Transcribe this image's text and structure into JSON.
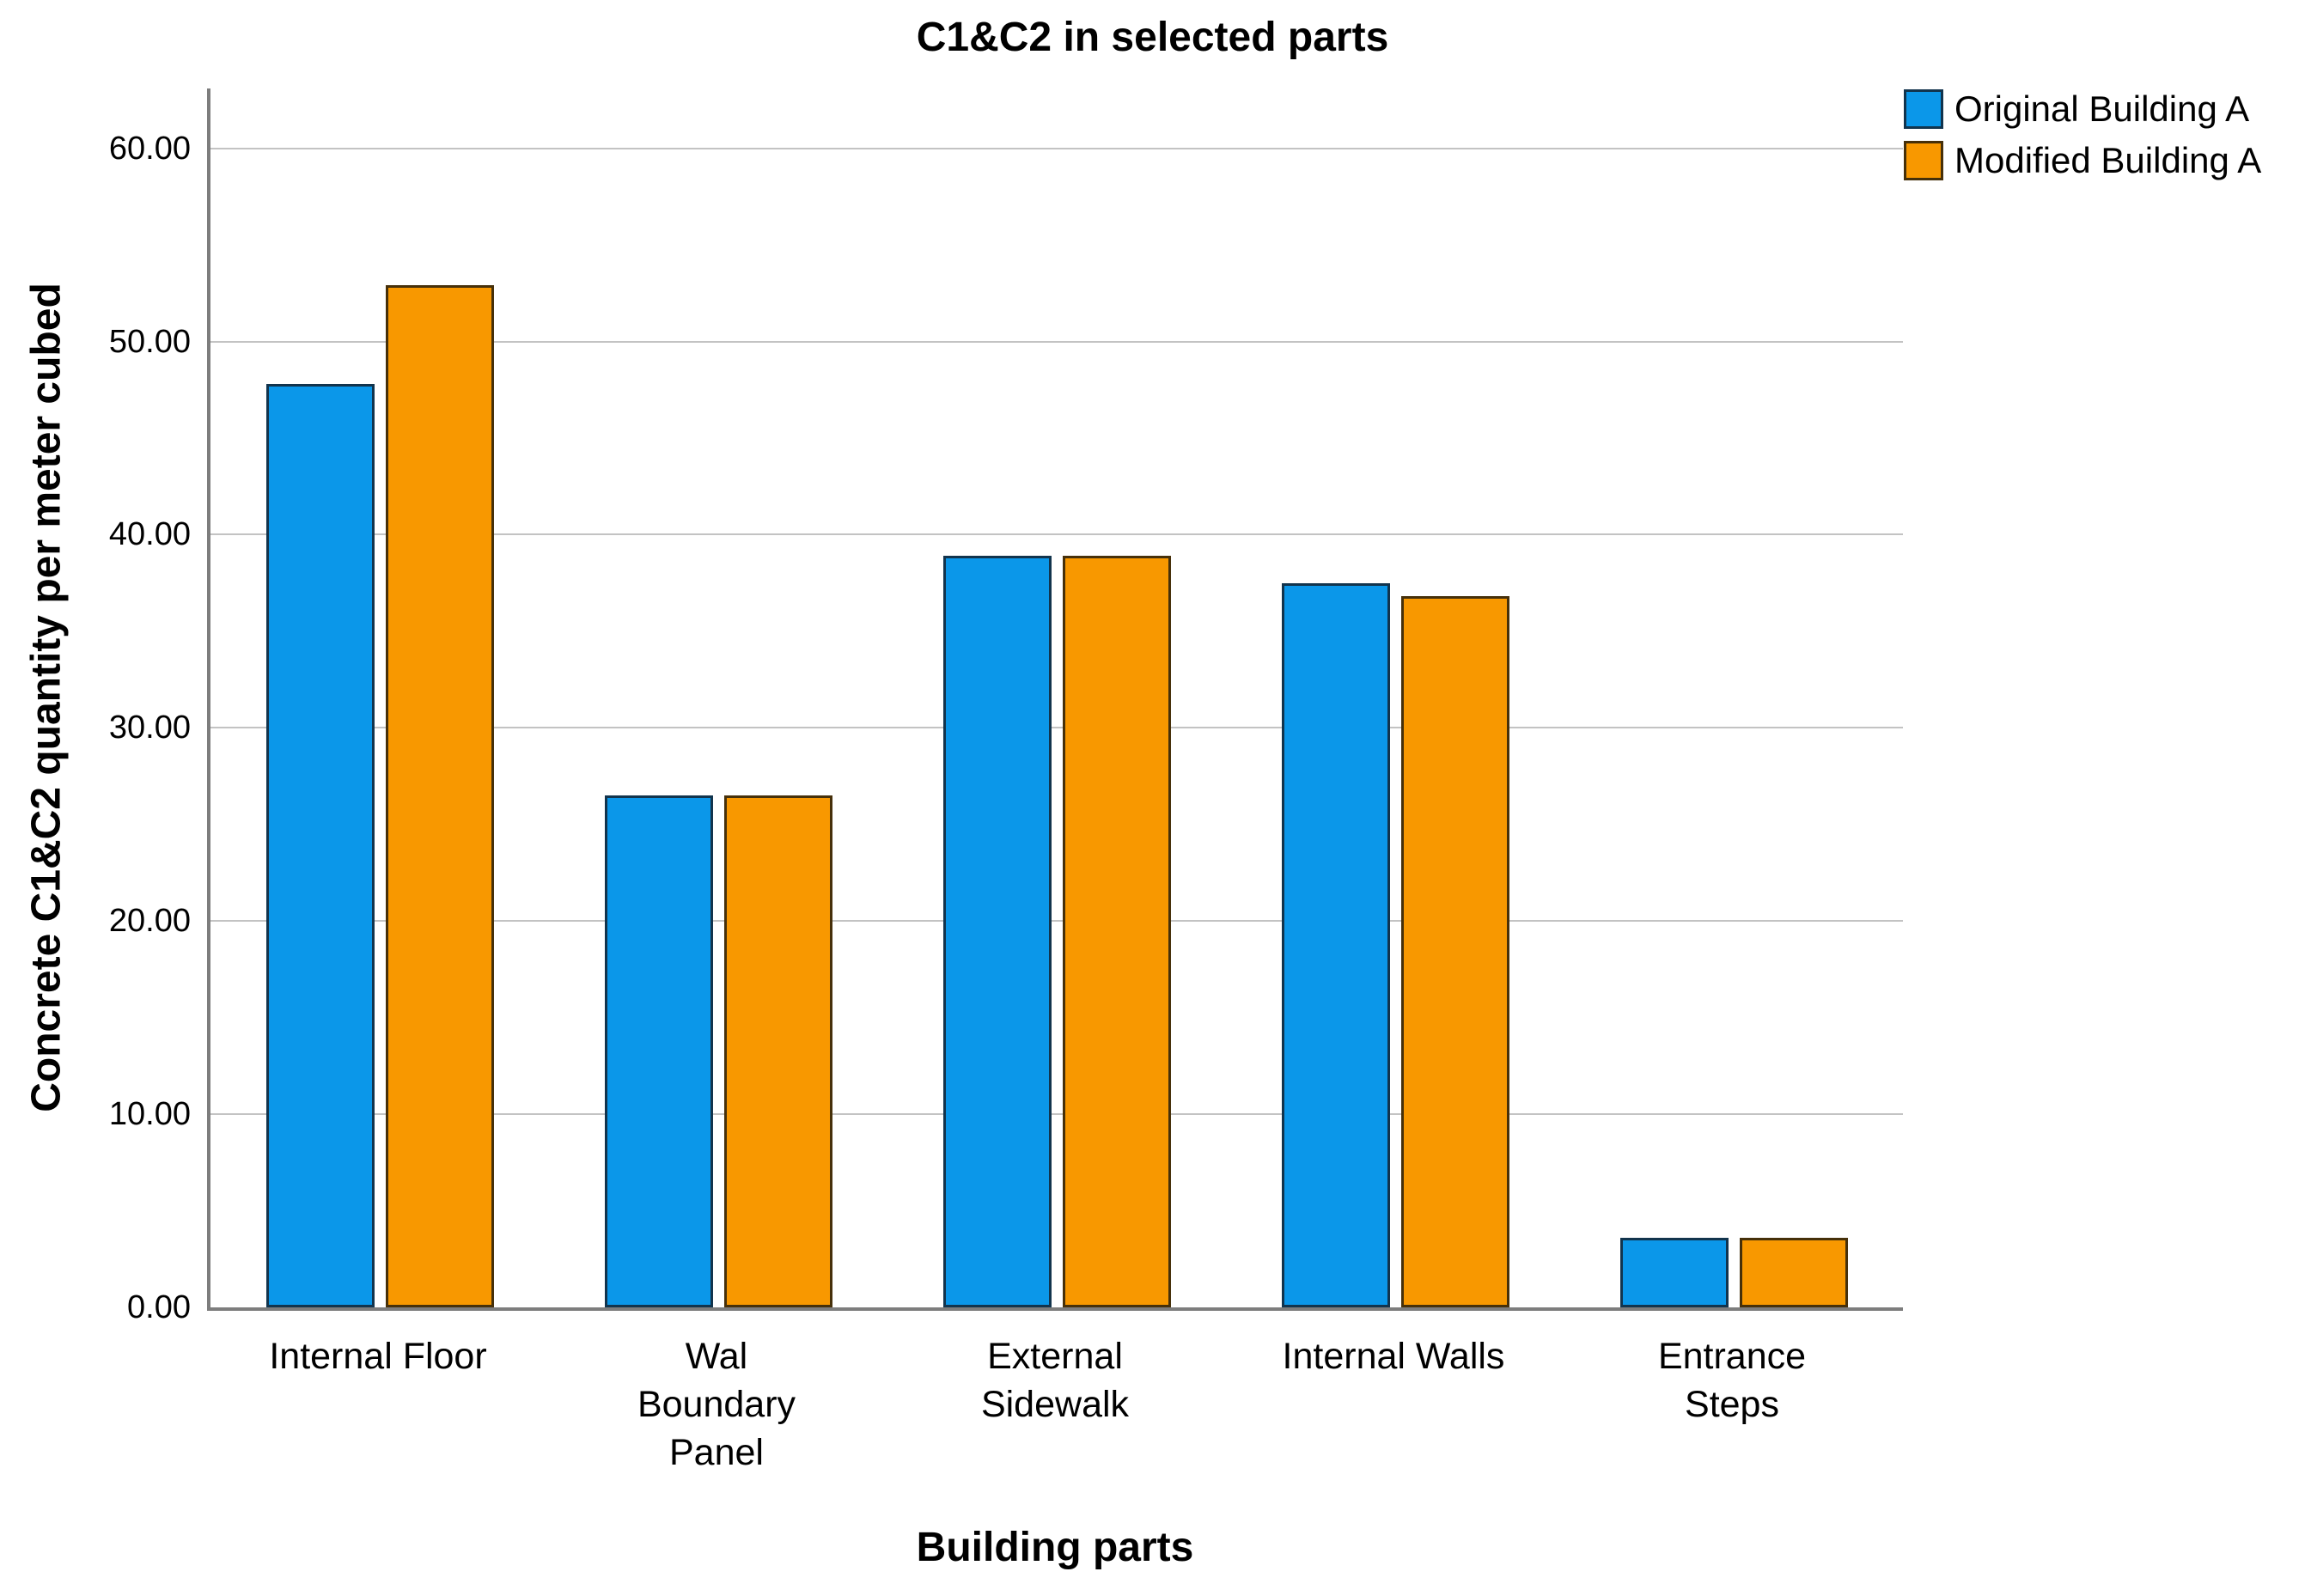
{
  "title": "C1&C2 in selected parts",
  "colors": {
    "original_fill": "#0B97E9",
    "original_border": "#12344D",
    "modified_fill": "#F89800",
    "modified_border": "#46300A",
    "gridline": "#C3C3C3",
    "axis_line": "#7D7D7D",
    "text": "#000000",
    "background": "#FFFFFF"
  },
  "chart_data": {
    "type": "bar",
    "title": "C1&C2 in selected parts",
    "xlabel": "Building parts",
    "ylabel": "Concrete C1&C2 quantity per meter cubed",
    "categories": [
      "Internal Floor",
      "Wal\nBoundary\nPanel",
      "External\nSidewalk",
      "Internal Walls",
      "Entrance\nSteps"
    ],
    "series": [
      {
        "name": "Original Building A",
        "color": "#0B97E9",
        "border": "#12344D",
        "values": [
          47.8,
          26.5,
          38.9,
          37.5,
          3.6
        ]
      },
      {
        "name": "Modified Building A",
        "color": "#F89800",
        "border": "#46300A",
        "values": [
          52.9,
          26.5,
          38.9,
          36.8,
          3.6
        ]
      }
    ],
    "yticks": [
      0,
      10,
      20,
      30,
      40,
      50,
      60
    ],
    "ytick_labels": [
      "0.00",
      "10.00",
      "20.00",
      "30.00",
      "40.00",
      "50.00",
      "60.00"
    ],
    "ylim": [
      0,
      63.1
    ],
    "grid": true,
    "legend_position": "top-right"
  }
}
